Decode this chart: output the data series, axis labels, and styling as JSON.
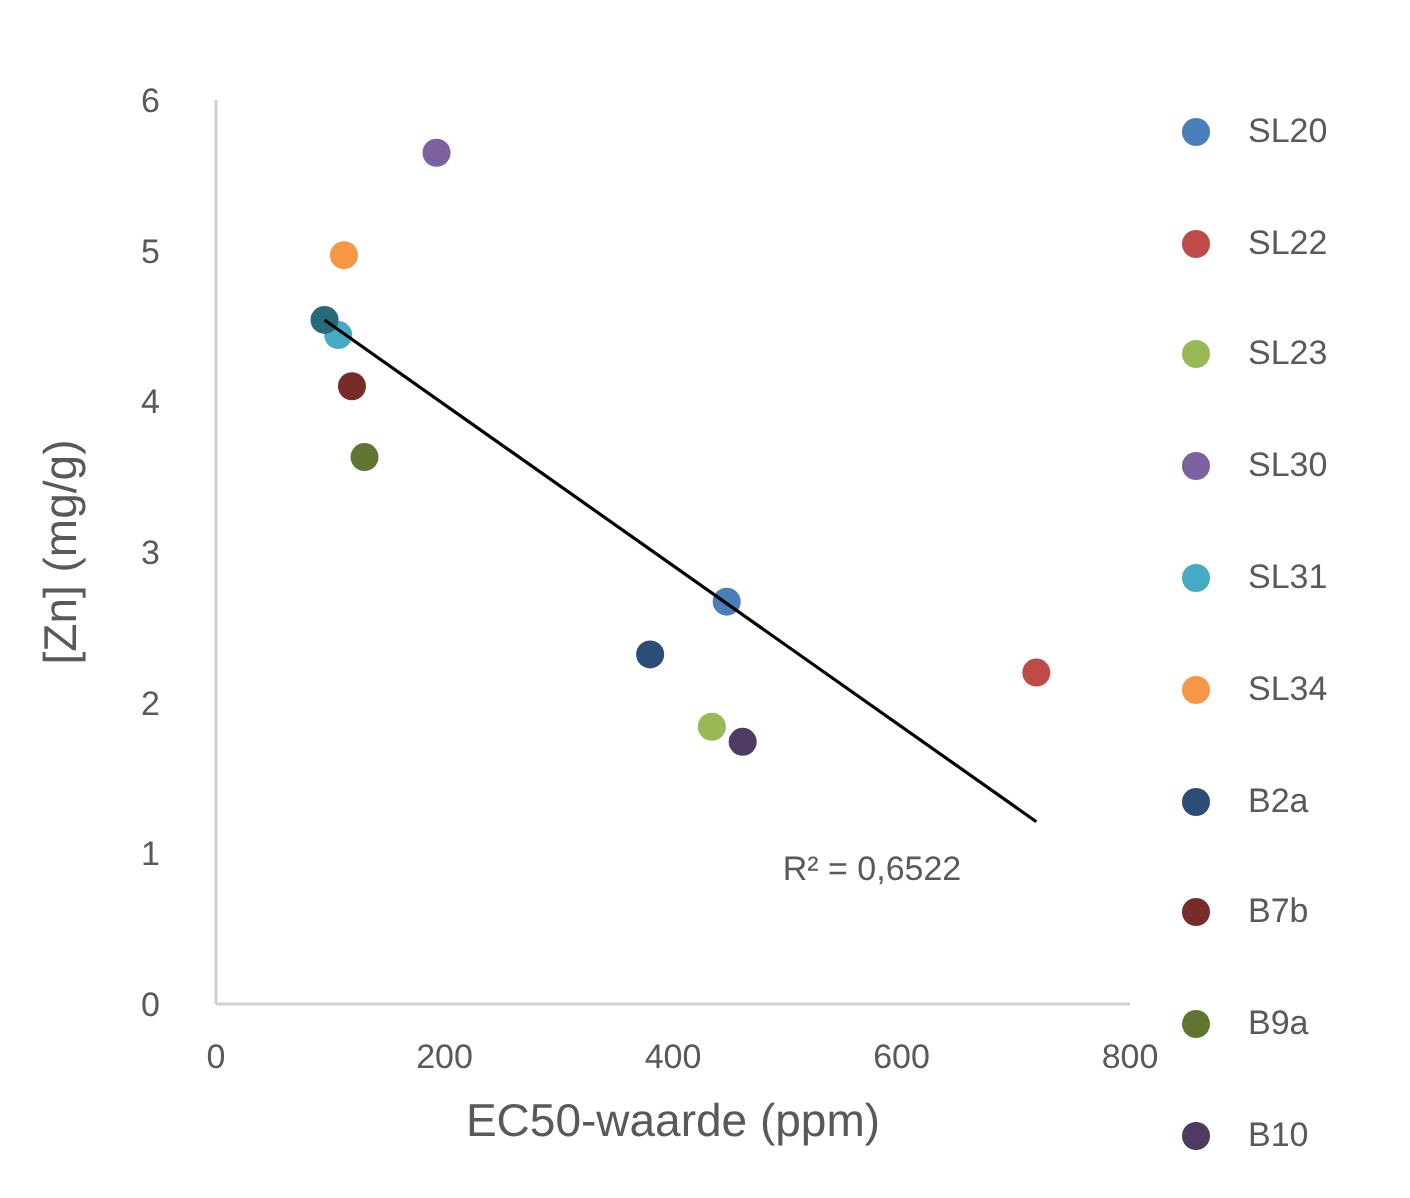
{
  "chart_data": {
    "type": "scatter",
    "xlabel": "EC50-waarde (ppm)",
    "ylabel": "[Zn] (mg/g)",
    "xlim": [
      0,
      800
    ],
    "xticks": [
      0,
      200,
      400,
      600,
      800
    ],
    "ylim": [
      0,
      6
    ],
    "yticks": [
      0,
      1,
      2,
      3,
      4,
      5,
      6
    ],
    "grid": false,
    "legend": "right",
    "marker": "circle",
    "annotations": [
      "R² = 0,6522"
    ],
    "series": [
      {
        "name": "SL20",
        "color": "#4a7ebb",
        "x": [
          447
        ],
        "values": [
          2.67
        ]
      },
      {
        "name": "SL22",
        "color": "#be4b48",
        "x": [
          718
        ],
        "values": [
          2.2
        ]
      },
      {
        "name": "SL23",
        "color": "#98b954",
        "x": [
          434
        ],
        "values": [
          1.84
        ]
      },
      {
        "name": "SL30",
        "color": "#7d60a0",
        "x": [
          193
        ],
        "values": [
          5.65
        ]
      },
      {
        "name": "SL31",
        "color": "#46aac5",
        "x": [
          107
        ],
        "values": [
          4.44
        ]
      },
      {
        "name": "SL34",
        "color": "#f79646",
        "x": [
          112
        ],
        "values": [
          4.97
        ]
      },
      {
        "name": "B2a",
        "color": "#2c4d75",
        "x": [
          380
        ],
        "values": [
          2.32
        ]
      },
      {
        "name": "B7b",
        "color": "#772c2a",
        "x": [
          119
        ],
        "values": [
          4.1
        ]
      },
      {
        "name": "B9a",
        "color": "#5f7530",
        "x": [
          130
        ],
        "values": [
          3.63
        ]
      },
      {
        "name": "B10",
        "color": "#4d3b62",
        "x": [
          461
        ],
        "values": [
          1.74
        ]
      },
      {
        "color": "#276a7c",
        "x": [
          95
        ],
        "values": [
          4.54
        ]
      },
      {
        "type": "line",
        "marker": "none",
        "color": "#000000",
        "x": [
          95,
          718
        ],
        "values": [
          4.54,
          1.21
        ]
      }
    ]
  }
}
